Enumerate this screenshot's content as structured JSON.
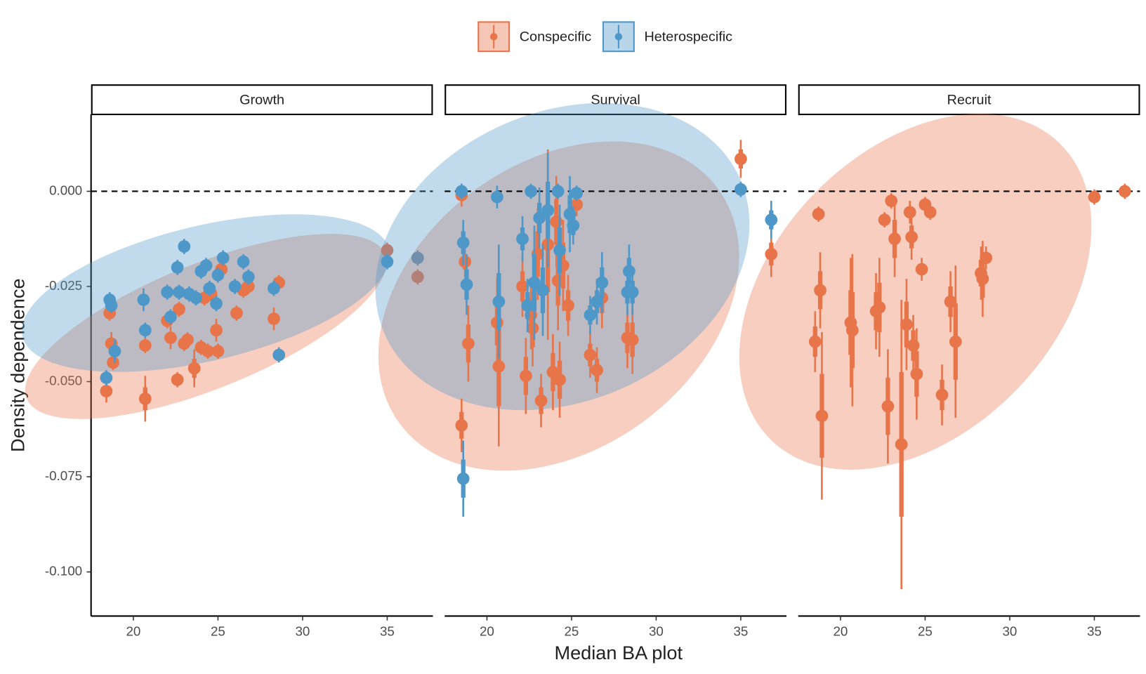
{
  "chart_data": {
    "type": "scatter",
    "x_label": "Median BA plot",
    "y_label": "Density dependence",
    "legend": "top",
    "hline": 0,
    "xlim": [
      17.5,
      37.7
    ],
    "ylim": [
      -0.1116,
      0.0202
    ],
    "xticks": [
      20,
      25,
      30,
      35
    ],
    "yticks": [
      {
        "value": 0,
        "label": "0.000"
      },
      {
        "value": -0.025,
        "label": "-0.025"
      },
      {
        "value": -0.05,
        "label": "-0.050"
      },
      {
        "value": -0.075,
        "label": "-0.075"
      },
      {
        "value": -0.1,
        "label": "-0.100"
      }
    ],
    "series": [
      {
        "name": "Conspecific",
        "color": "#e8744a"
      },
      {
        "name": "Heterospecific",
        "color": "#4e97c9"
      }
    ],
    "facets": [
      {
        "title": "Growth",
        "series": [
          {
            "x": [
              18.4,
              18.6,
              18.7,
              18.8,
              20.7,
              20.7,
              22.0,
              22.2,
              22.6,
              22.7,
              23.0,
              23.2,
              23.6,
              24.0,
              24.2,
              24.4,
              24.6,
              24.9,
              25.0,
              25.2,
              26.1,
              26.5,
              26.8,
              28.3,
              28.6,
              35.0,
              36.8
            ],
            "values": [
              -0.0525,
              -0.032,
              -0.04,
              -0.045,
              -0.0545,
              -0.0405,
              -0.034,
              -0.0385,
              -0.0495,
              -0.031,
              -0.04,
              -0.039,
              -0.0465,
              -0.041,
              -0.028,
              -0.042,
              -0.027,
              -0.0365,
              -0.042,
              -0.0205,
              -0.032,
              -0.026,
              -0.025,
              -0.0335,
              -0.024,
              -0.0155,
              -0.0225
            ],
            "errors": [
              0.003,
              0.002,
              0.003,
              0.002,
              0.006,
              0.002,
              0.002,
              0.003,
              0.002,
              0.002,
              0.002,
              0.002,
              0.005,
              0.002,
              0.002,
              0.002,
              0.002,
              0.003,
              0.002,
              0.002,
              0.002,
              0.002,
              0.002,
              0.003,
              0.002,
              0.002,
              0.002
            ]
          },
          {
            "x": [
              18.4,
              18.6,
              18.7,
              18.9,
              20.6,
              20.7,
              22.0,
              22.2,
              22.6,
              22.7,
              23.0,
              23.3,
              23.7,
              24.0,
              24.3,
              24.5,
              24.9,
              25.0,
              25.3,
              26.0,
              26.5,
              26.8,
              28.3,
              28.6,
              35.0,
              36.8
            ],
            "values": [
              -0.049,
              -0.0285,
              -0.03,
              -0.042,
              -0.0285,
              -0.0365,
              -0.0265,
              -0.033,
              -0.02,
              -0.0265,
              -0.0145,
              -0.027,
              -0.028,
              -0.021,
              -0.0195,
              -0.0255,
              -0.0295,
              -0.022,
              -0.0175,
              -0.025,
              -0.0185,
              -0.0225,
              -0.0255,
              -0.043,
              -0.0185,
              -0.0175
            ],
            "errors": [
              0.002,
              0.002,
              0.002,
              0.003,
              0.003,
              0.002,
              0.002,
              0.002,
              0.002,
              0.002,
              0.002,
              0.002,
              0.002,
              0.002,
              0.002,
              0.002,
              0.002,
              0.002,
              0.002,
              0.002,
              0.002,
              0.002,
              0.002,
              0.002,
              0.002,
              0.002
            ]
          }
        ]
      },
      {
        "title": "Survival",
        "series": [
          {
            "x": [
              18.5,
              18.5,
              18.7,
              18.9,
              20.6,
              20.7,
              22.1,
              22.3,
              22.6,
              22.7,
              23.0,
              23.2,
              23.6,
              23.9,
              24.1,
              24.2,
              24.3,
              24.5,
              24.8,
              25.3,
              26.1,
              26.5,
              26.8,
              28.3,
              28.6,
              35.0,
              36.8
            ],
            "values": [
              -0.001,
              -0.0615,
              -0.0185,
              -0.04,
              -0.0345,
              -0.046,
              -0.025,
              -0.0485,
              -0.0325,
              -0.036,
              -0.0165,
              -0.055,
              -0.014,
              -0.0475,
              -0.008,
              -0.0235,
              -0.0495,
              -0.0195,
              -0.03,
              -0.0035,
              -0.043,
              -0.047,
              -0.028,
              -0.0385,
              -0.039,
              0.0085,
              -0.0165
            ],
            "errors": [
              0.003,
              0.007,
              0.004,
              0.01,
              0.012,
              0.021,
              0.008,
              0.01,
              0.009,
              0.01,
              0.012,
              0.007,
              0.025,
              0.01,
              0.012,
              0.013,
              0.01,
              0.012,
              0.008,
              0.003,
              0.006,
              0.006,
              0.008,
              0.008,
              0.009,
              0.005,
              0.006
            ]
          },
          {
            "x": [
              18.5,
              18.6,
              18.6,
              18.8,
              20.6,
              20.7,
              22.1,
              22.4,
              22.6,
              22.8,
              23.1,
              23.3,
              23.6,
              24.2,
              24.3,
              24.9,
              25.1,
              25.3,
              26.1,
              26.5,
              26.8,
              28.3,
              28.4,
              28.6,
              35.0,
              36.8
            ],
            "values": [
              0.0,
              -0.0755,
              -0.0135,
              -0.0245,
              -0.0015,
              -0.029,
              -0.0125,
              -0.03,
              0.0,
              -0.024,
              -0.007,
              -0.026,
              -0.005,
              0.0,
              -0.0155,
              -0.006,
              -0.009,
              -0.0005,
              -0.0325,
              -0.029,
              -0.024,
              -0.0265,
              -0.021,
              -0.0265,
              0.0005,
              -0.0075
            ],
            "errors": [
              0.002,
              0.01,
              0.006,
              0.008,
              0.003,
              0.015,
              0.006,
              0.007,
              0.002,
              0.015,
              0.008,
              0.012,
              0.015,
              0.002,
              0.012,
              0.01,
              0.005,
              0.002,
              0.005,
              0.006,
              0.008,
              0.006,
              0.007,
              0.006,
              0.002,
              0.005
            ]
          }
        ]
      },
      {
        "title": "Recruit",
        "series": [
          {
            "x": [
              18.5,
              18.7,
              18.8,
              18.9,
              20.6,
              20.7,
              22.1,
              22.3,
              22.6,
              22.8,
              23.0,
              23.2,
              23.6,
              23.9,
              24.1,
              24.2,
              24.3,
              24.5,
              24.8,
              25.0,
              25.3,
              26.0,
              26.5,
              26.8,
              28.3,
              28.4,
              28.6,
              35.0,
              36.8
            ],
            "values": [
              -0.0395,
              -0.006,
              -0.026,
              -0.059,
              -0.0345,
              -0.0365,
              -0.0315,
              -0.0305,
              -0.0075,
              -0.0565,
              -0.0025,
              -0.0125,
              -0.0665,
              -0.035,
              -0.0055,
              -0.012,
              -0.0405,
              -0.048,
              -0.0205,
              -0.0035,
              -0.0055,
              -0.0535,
              -0.029,
              -0.0395,
              -0.0215,
              -0.023,
              -0.0175,
              -0.0015,
              0.0
            ],
            "errors": [
              0.008,
              0.002,
              0.01,
              0.022,
              0.017,
              0.02,
              0.01,
              0.013,
              0.002,
              0.015,
              0.002,
              0.01,
              0.038,
              0.012,
              0.003,
              0.006,
              0.008,
              0.012,
              0.003,
              0.002,
              0.002,
              0.008,
              0.008,
              0.02,
              0.007,
              0.01,
              0.003,
              0.002,
              0.002
            ]
          }
        ]
      }
    ]
  }
}
